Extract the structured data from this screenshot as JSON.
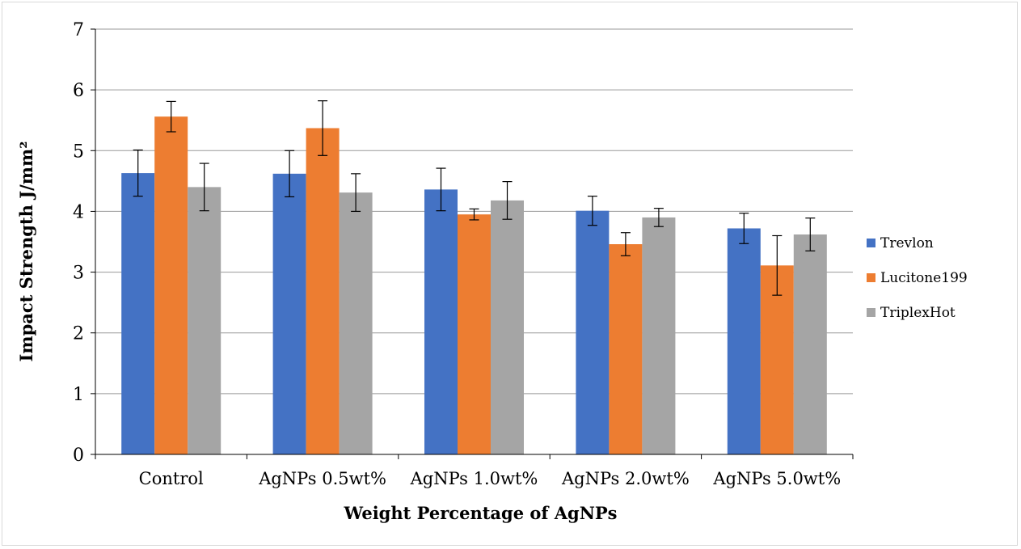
{
  "chart_data": {
    "type": "bar",
    "title": "",
    "xlabel": "Weight Percentage of AgNPs",
    "ylabel": "Impact Strength J/mm²",
    "ylim": [
      0,
      7
    ],
    "yticks": [
      0,
      1,
      2,
      3,
      4,
      5,
      6,
      7
    ],
    "grid": true,
    "legend_position": "right",
    "categories": [
      "Control",
      "AgNPs 0.5wt%",
      "AgNPs 1.0wt%",
      "AgNPs 2.0wt%",
      "AgNPs 5.0wt%"
    ],
    "series": [
      {
        "name": "Trevlon",
        "color": "#4472C4",
        "values": [
          4.63,
          4.62,
          4.36,
          4.01,
          3.72
        ],
        "errors": [
          0.38,
          0.38,
          0.35,
          0.24,
          0.25
        ]
      },
      {
        "name": "Lucitone199",
        "color": "#ED7D31",
        "values": [
          5.56,
          5.37,
          3.95,
          3.46,
          3.11
        ],
        "errors": [
          0.25,
          0.45,
          0.09,
          0.19,
          0.49
        ]
      },
      {
        "name": "TriplexHot",
        "color": "#A5A5A5",
        "values": [
          4.4,
          4.31,
          4.18,
          3.9,
          3.62
        ],
        "errors": [
          0.39,
          0.31,
          0.31,
          0.15,
          0.27
        ]
      }
    ]
  }
}
